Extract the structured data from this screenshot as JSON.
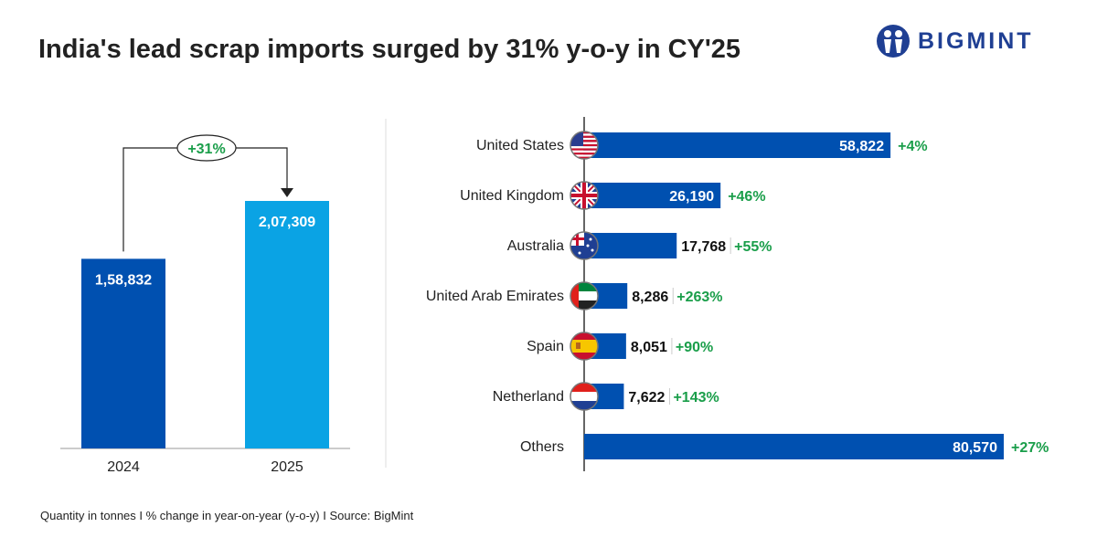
{
  "title": "India's lead scrap imports surged by 31% y-o-y in CY'25",
  "logo": {
    "text": "BIGMINT"
  },
  "footer": "Quantity in tonnes  I  % change in year-on-year (y-o-y)  I  Source: BigMint",
  "colors": {
    "dark_blue": "#0050b0",
    "light_blue": "#0aa3e4",
    "green": "#1a9e4a"
  },
  "chart_data": [
    {
      "type": "bar",
      "orientation": "vertical",
      "categories": [
        "2024",
        "2025"
      ],
      "values": [
        158832,
        207309
      ],
      "value_labels": [
        "1,58,832",
        "2,07,309"
      ],
      "annotation": "+31%"
    },
    {
      "type": "bar",
      "orientation": "horizontal",
      "categories": [
        "United States",
        "United Kingdom",
        "Australia",
        "United Arab Emirates",
        "Spain",
        "Netherland",
        "Others"
      ],
      "flags": [
        "us-flag",
        "uk-flag",
        "australia-flag",
        "uae-flag",
        "spain-flag",
        "netherlands-flag",
        ""
      ],
      "values": [
        58822,
        26190,
        17768,
        8286,
        8051,
        7622,
        80570
      ],
      "value_labels": [
        "58,822",
        "26,190",
        "17,768",
        "8,286",
        "8,051",
        "7,622",
        "80,570"
      ],
      "changes": [
        "+4%",
        "+46%",
        "+55%",
        "+263%",
        "+90%",
        "+143%",
        "+27%"
      ]
    }
  ]
}
